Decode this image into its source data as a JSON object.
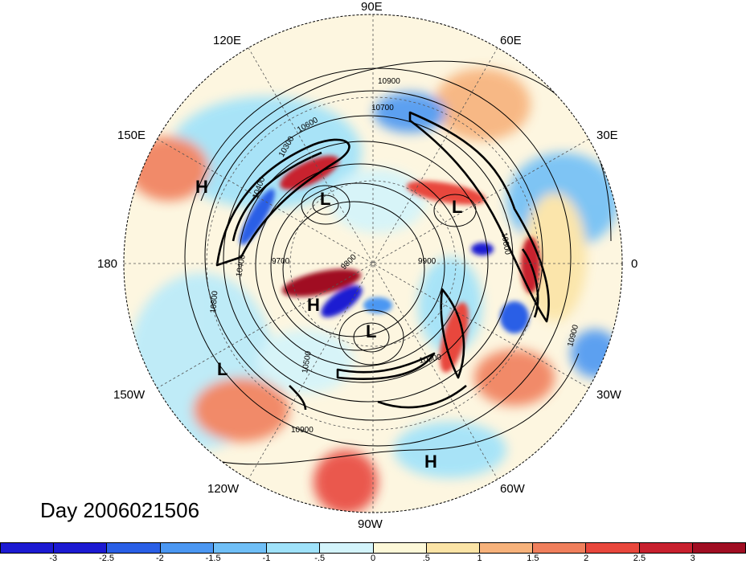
{
  "title": "Day 2006021506",
  "longitude_labels": [
    "90E",
    "120E",
    "60E",
    "150E",
    "30E",
    "180",
    "0",
    "150W",
    "30W",
    "120W",
    "60W",
    "90W"
  ],
  "pressure_centers": [
    "H",
    "L",
    "L",
    "H",
    "L",
    "L",
    "H"
  ],
  "contour_labels": [
    "10900",
    "10700",
    "10600",
    "10300",
    "10400",
    "9700",
    "9800",
    "9900",
    "10400",
    "10500",
    "10300",
    "10800",
    "10900",
    "10800",
    "10900"
  ],
  "colorbar": {
    "ticks": [
      "-3",
      "-2.5",
      "-2",
      "-1.5",
      "-1",
      "-.5",
      "0",
      ".5",
      "1",
      "1.5",
      "2",
      "2.5",
      "3"
    ],
    "colors": [
      "#1c1ad2",
      "#2a5fe6",
      "#4b97f2",
      "#6fbff7",
      "#9fe2fa",
      "#d3f4fb",
      "#fdf8d8",
      "#fbe4a6",
      "#f7b27b",
      "#f07f5c",
      "#e8473c",
      "#c8202e",
      "#a00d22"
    ]
  }
}
